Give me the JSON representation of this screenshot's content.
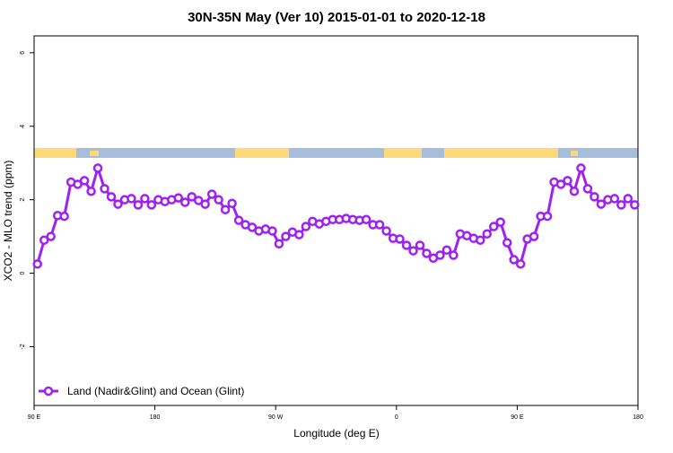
{
  "chart_data": {
    "type": "line",
    "title": "30N-35N May (Ver 10)   2015-01-01 to 2020-12-18",
    "x_label": "Longitude (deg E)",
    "y_label": "XCO2 - MLO trend (ppm)",
    "x": [
      92.5,
      97.5,
      102.5,
      107.5,
      112.5,
      117.5,
      122.5,
      127.5,
      132.5,
      137.5,
      142.5,
      147.5,
      152.5,
      157.5,
      162.5,
      167.5,
      172.5,
      177.5,
      182.5,
      187.5,
      192.5,
      197.5,
      202.5,
      207.5,
      212.5,
      217.5,
      222.5,
      227.5,
      232.5,
      237.5,
      242.5,
      247.5,
      252.5,
      257.5,
      262.5,
      267.5,
      272.5,
      277.5,
      282.5,
      287.5,
      292.5,
      297.5,
      302.5,
      307.5,
      312.5,
      317.5,
      322.5,
      327.5,
      332.5,
      337.5,
      342.5,
      347.5,
      352.5,
      357.5,
      362.5,
      367.5,
      372.5,
      377.5,
      382.5,
      387.5,
      392.5,
      397.5,
      402.5,
      407.5,
      412.5,
      417.5,
      422.5,
      427.5,
      432.5,
      437.5,
      442.5,
      447.5,
      452.5,
      457.5,
      462.5,
      467.5,
      472.5,
      477.5,
      482.5,
      487.5,
      492.5,
      497.5,
      502.5,
      507.5,
      512.5,
      517.5,
      522.5,
      527.5,
      532.5,
      537.5
    ],
    "series": [
      {
        "name": "Land (Nadir&Glint) and Ocean (Glint)",
        "color": "#a020f0",
        "values": [
          0.25,
          0.9,
          1.0,
          1.57,
          1.55,
          2.48,
          2.42,
          2.52,
          2.23,
          2.86,
          2.3,
          2.08,
          1.88,
          2.0,
          2.03,
          1.86,
          2.03,
          1.86,
          2.0,
          1.95,
          2.0,
          2.05,
          1.93,
          2.08,
          1.98,
          1.88,
          2.15,
          2.0,
          1.73,
          1.9,
          1.44,
          1.32,
          1.25,
          1.15,
          1.2,
          1.15,
          0.8,
          1.0,
          1.12,
          1.05,
          1.27,
          1.41,
          1.34,
          1.41,
          1.46,
          1.46,
          1.49,
          1.46,
          1.44,
          1.46,
          1.32,
          1.32,
          1.15,
          0.95,
          0.93,
          0.76,
          0.61,
          0.76,
          0.54,
          0.41,
          0.49,
          0.63,
          0.49,
          1.07,
          1.02,
          0.95,
          0.9,
          1.07,
          1.27,
          1.39,
          0.83,
          0.37,
          0.25,
          0.93,
          1.0,
          1.55,
          1.55,
          2.48,
          2.42,
          2.52,
          2.23,
          2.86,
          2.3,
          2.08,
          1.88,
          2.0,
          2.03,
          1.86,
          2.03,
          1.86
        ]
      }
    ],
    "xlim": [
      90,
      540
    ],
    "xticks": [
      {
        "value": 90,
        "label": "90 E"
      },
      180,
      {
        "value": 270,
        "label": "90 W"
      },
      {
        "value": 360,
        "label": "0"
      },
      {
        "value": 450,
        "label": "90 E"
      },
      {
        "value": 540,
        "label": "180"
      }
    ],
    "ylim": [
      -3.6,
      6.46
    ],
    "yticks": [
      -2,
      0,
      2,
      4,
      6
    ],
    "legend": "bottom-left"
  }
}
